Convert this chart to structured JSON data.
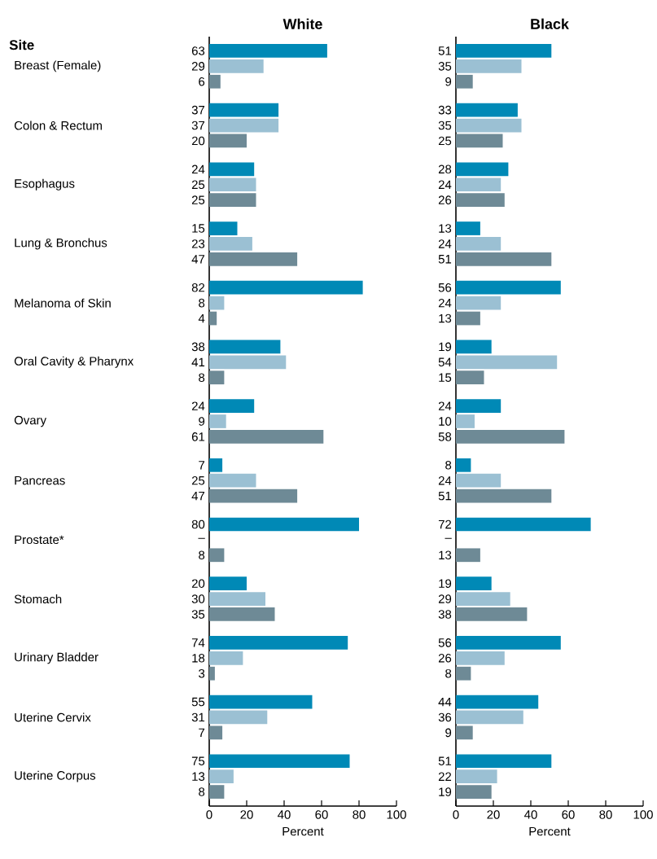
{
  "chart_data": [
    {
      "type": "bar",
      "orientation": "horizontal",
      "title": "White",
      "xlabel": "Percent",
      "ylabel": "Site",
      "categories": [
        "Breast (Female)",
        "Colon & Rectum",
        "Esophagus",
        "Lung & Bronchus",
        "Melanoma of Skin",
        "Oral Cavity & Pharynx",
        "Ovary",
        "Pancreas",
        "Prostate*",
        "Stomach",
        "Urinary Bladder",
        "Uterine Cervix",
        "Uterine Corpus"
      ],
      "xlim": [
        0,
        100
      ],
      "xticks": [
        0,
        20,
        40,
        60,
        80,
        100
      ],
      "series": [
        {
          "color": "#0089b6",
          "values": [
            63,
            37,
            24,
            15,
            82,
            38,
            24,
            7,
            80,
            20,
            74,
            55,
            75
          ],
          "value_labels": [
            "63",
            "37",
            "24",
            "15",
            "82",
            "38",
            "24",
            "7",
            "80",
            "20",
            "74",
            "55",
            "75"
          ]
        },
        {
          "color": "#9bc0d3",
          "values": [
            29,
            37,
            25,
            23,
            8,
            41,
            9,
            25,
            null,
            30,
            18,
            31,
            13
          ],
          "value_labels": [
            "29",
            "37",
            "25",
            "23",
            "8",
            "41",
            "9",
            "25",
            "–",
            "30",
            "18",
            "31",
            "13"
          ]
        },
        {
          "color": "#6e8a96",
          "values": [
            6,
            20,
            25,
            47,
            4,
            8,
            61,
            47,
            8,
            35,
            3,
            7,
            8
          ],
          "value_labels": [
            "6",
            "20",
            "25",
            "47",
            "4",
            "8",
            "61",
            "47",
            "8",
            "35",
            "3",
            "7",
            "8"
          ]
        }
      ]
    },
    {
      "type": "bar",
      "orientation": "horizontal",
      "title": "Black",
      "xlabel": "Percent",
      "categories": [
        null,
        null,
        null,
        null,
        null,
        null,
        null,
        null,
        null,
        null,
        null,
        null,
        null
      ],
      "xlim": [
        0,
        100
      ],
      "xticks": [
        0,
        20,
        40,
        60,
        80,
        100
      ],
      "series": [
        {
          "color": "#0089b6",
          "values": [
            51,
            33,
            28,
            13,
            56,
            19,
            24,
            8,
            72,
            19,
            56,
            44,
            51
          ],
          "value_labels": [
            "51",
            "33",
            "28",
            "13",
            "56",
            "19",
            "24",
            "8",
            "72",
            "19",
            "56",
            "44",
            "51"
          ]
        },
        {
          "color": "#9bc0d3",
          "values": [
            35,
            35,
            24,
            24,
            24,
            54,
            10,
            24,
            null,
            29,
            26,
            36,
            22
          ],
          "value_labels": [
            "35",
            "35",
            "24",
            "24",
            "24",
            "54",
            "10",
            "24",
            "–",
            "29",
            "26",
            "36",
            "22"
          ]
        },
        {
          "color": "#6e8a96",
          "values": [
            9,
            25,
            26,
            51,
            13,
            15,
            58,
            51,
            13,
            38,
            8,
            9,
            19
          ],
          "value_labels": [
            "9",
            "25",
            "26",
            "51",
            "13",
            "15",
            "58",
            "51",
            "13",
            "38",
            "8",
            "9",
            "19"
          ]
        }
      ]
    }
  ]
}
